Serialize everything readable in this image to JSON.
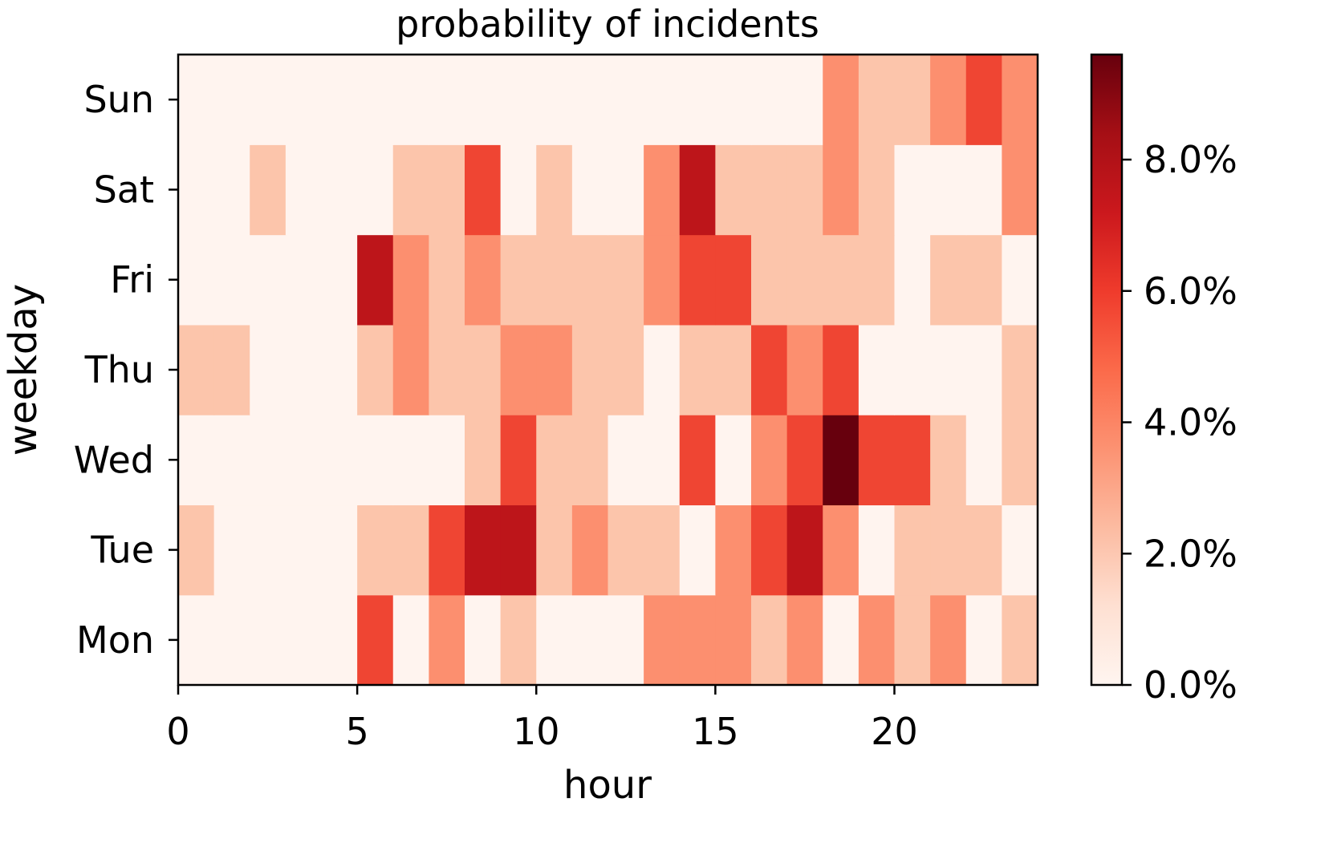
{
  "chart_data": {
    "type": "heatmap",
    "title": "probability of incidents",
    "xlabel": "hour",
    "ylabel": "weekday",
    "xlim": [
      0,
      24
    ],
    "x_ticks": [
      0,
      5,
      10,
      15,
      20
    ],
    "x_tick_labels": [
      "0",
      "5",
      "10",
      "15",
      "20"
    ],
    "y_categories": [
      "Mon",
      "Tue",
      "Wed",
      "Thu",
      "Fri",
      "Sat",
      "Sun"
    ],
    "x_bins": [
      0,
      1,
      2,
      3,
      4,
      5,
      6,
      7,
      8,
      9,
      10,
      11,
      12,
      13,
      14,
      15,
      16,
      17,
      18,
      19,
      20,
      21,
      22,
      23
    ],
    "values": [
      [
        0.5,
        0.5,
        0.5,
        0.5,
        0.5,
        6.0,
        0.5,
        4.0,
        0.5,
        2.0,
        0.5,
        0.5,
        0.5,
        4.0,
        4.0,
        4.0,
        2.0,
        4.0,
        0.5,
        4.0,
        2.0,
        4.0,
        0.5,
        2.0
      ],
      [
        2.0,
        0.5,
        0.5,
        0.5,
        0.5,
        2.0,
        2.0,
        6.0,
        8.0,
        8.0,
        2.0,
        4.0,
        2.0,
        2.0,
        0.5,
        4.0,
        6.0,
        8.0,
        4.0,
        0.5,
        2.0,
        2.0,
        2.0,
        0.5
      ],
      [
        0.5,
        0.5,
        0.5,
        0.5,
        0.5,
        0.5,
        0.5,
        0.5,
        2.0,
        6.0,
        2.0,
        2.0,
        0.5,
        0.5,
        6.0,
        0.5,
        4.0,
        6.0,
        10.0,
        6.0,
        6.0,
        2.0,
        0.5,
        2.0
      ],
      [
        2.0,
        2.0,
        0.5,
        0.5,
        0.5,
        2.0,
        4.0,
        2.0,
        2.0,
        4.0,
        4.0,
        2.0,
        2.0,
        0.5,
        2.0,
        2.0,
        6.0,
        4.0,
        6.0,
        0.5,
        0.5,
        0.5,
        0.5,
        2.0
      ],
      [
        0.5,
        0.5,
        0.5,
        0.5,
        0.5,
        8.0,
        4.0,
        2.0,
        4.0,
        2.0,
        2.0,
        2.0,
        2.0,
        4.0,
        6.0,
        6.0,
        2.0,
        2.0,
        2.0,
        2.0,
        0.5,
        2.0,
        2.0,
        0.5
      ],
      [
        0.5,
        0.5,
        2.0,
        0.5,
        0.5,
        0.5,
        2.0,
        2.0,
        6.0,
        0.5,
        2.0,
        0.5,
        0.5,
        4.0,
        8.0,
        2.0,
        2.0,
        2.0,
        4.0,
        2.0,
        0.5,
        0.5,
        0.5,
        4.0
      ],
      [
        0.5,
        0.5,
        0.5,
        0.5,
        0.5,
        0.5,
        0.5,
        0.5,
        0.5,
        0.5,
        0.5,
        0.5,
        0.5,
        0.5,
        0.5,
        0.5,
        0.5,
        0.5,
        4.0,
        2.0,
        2.0,
        4.0,
        6.0,
        4.0
      ]
    ],
    "value_unit": "%",
    "colorbar": {
      "colormap": "Reds",
      "range": [
        0,
        9.6
      ],
      "ticks": [
        0,
        2,
        4,
        6,
        8
      ],
      "tick_labels": [
        "0.0%",
        "2.0%",
        "4.0%",
        "6.0%",
        "8.0%"
      ],
      "colors": {
        "0.5": "#fff4ef",
        "2.0": "#fcc5ab",
        "4.0": "#fc8f6f",
        "6.0": "#ef4533",
        "8.0": "#bd151a",
        "10.0": "#67000d"
      }
    },
    "grid": false,
    "legend": "none"
  }
}
